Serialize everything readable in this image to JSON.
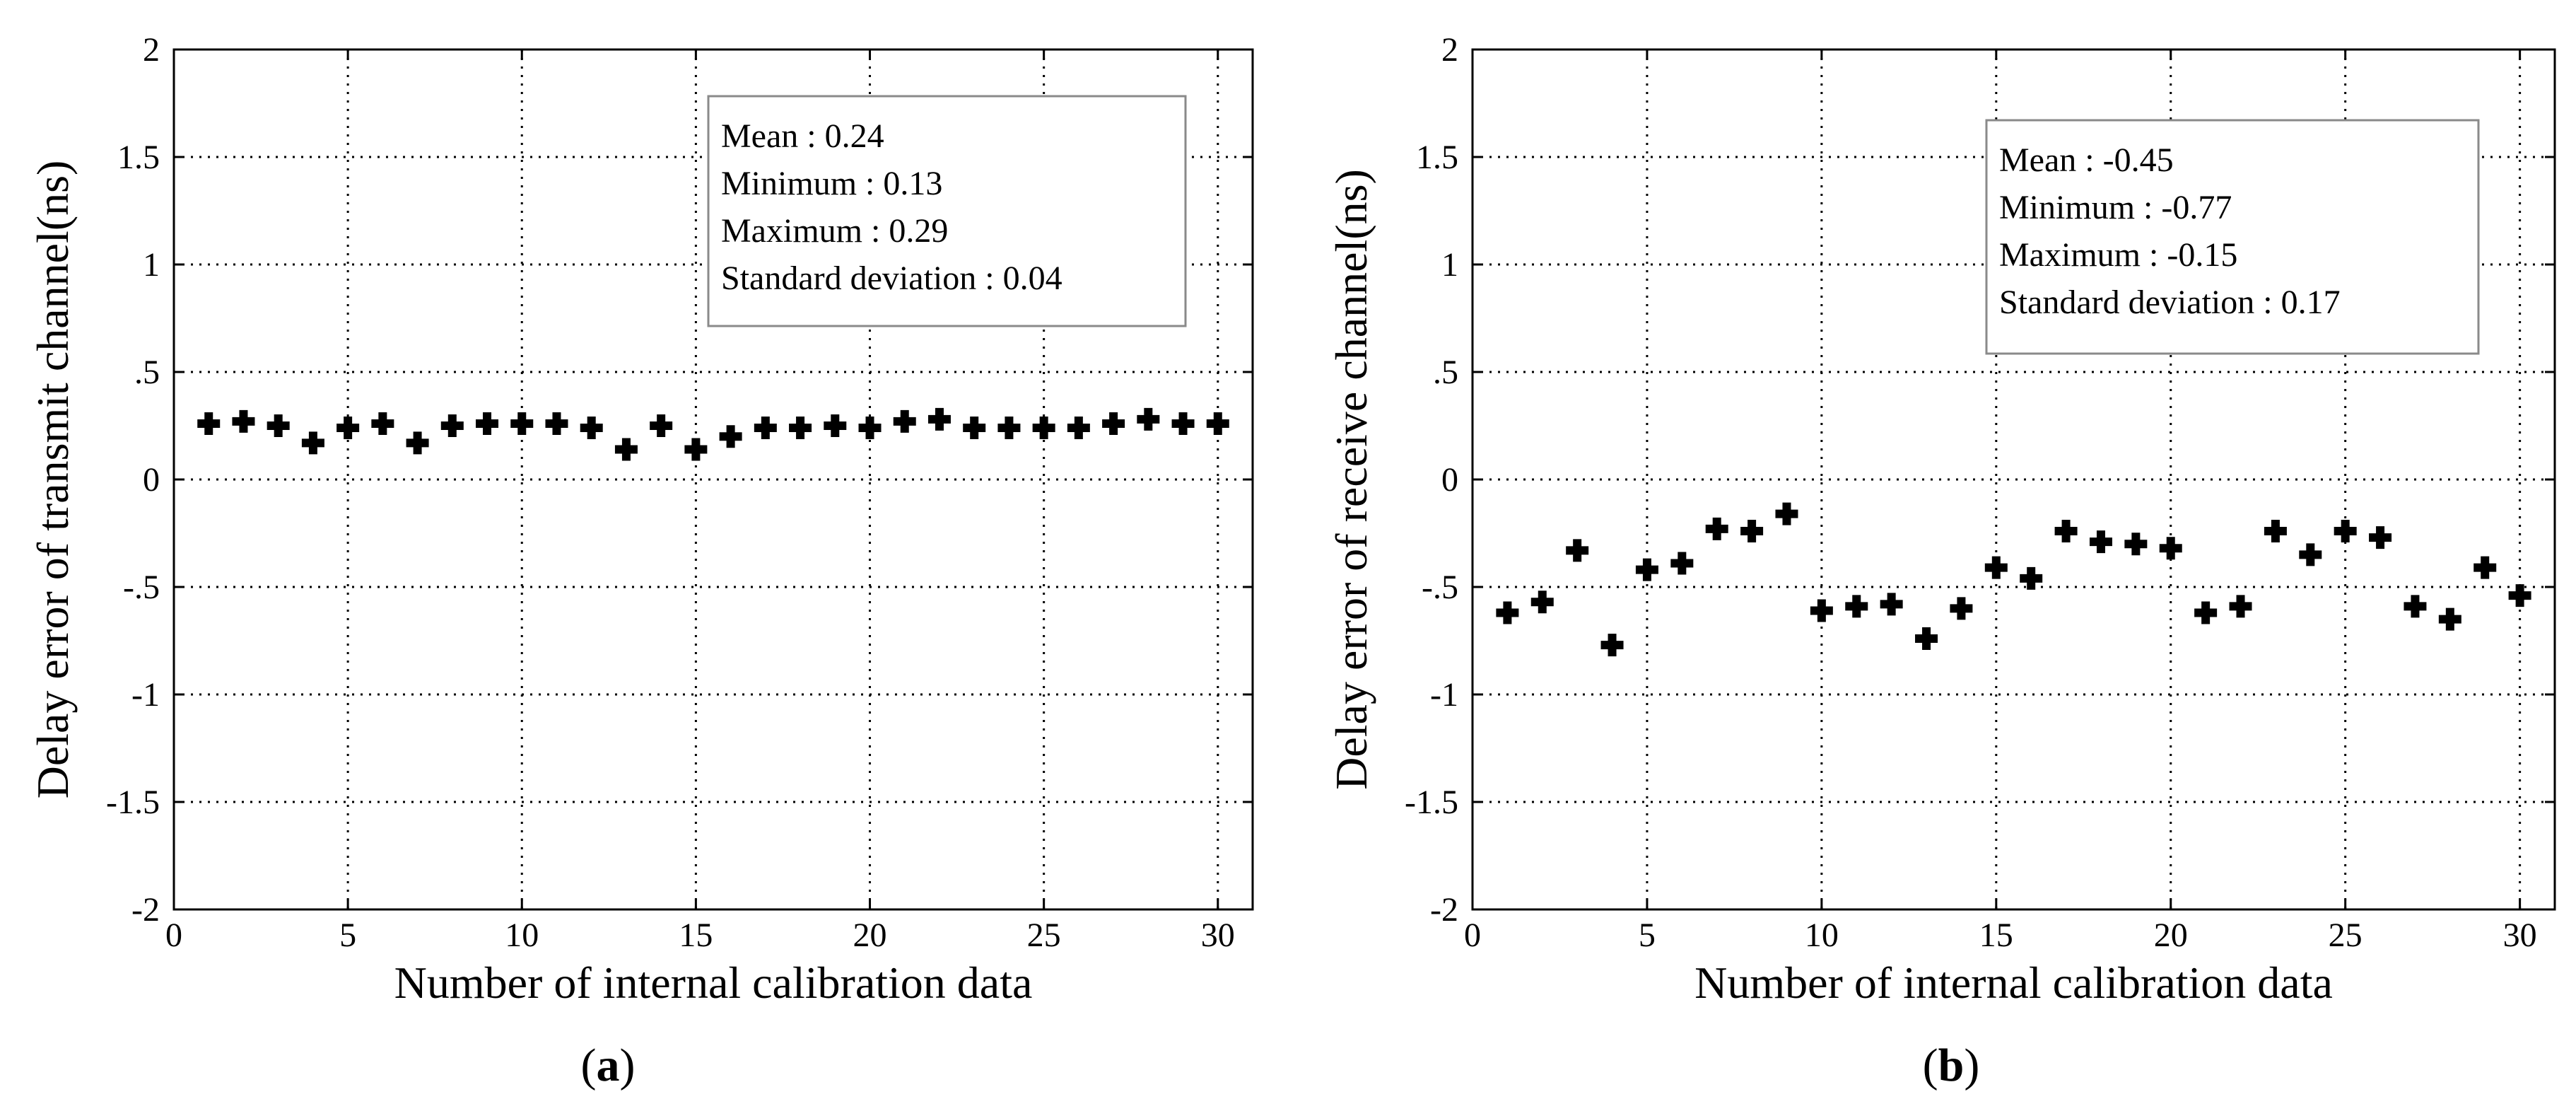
{
  "figure": {
    "panels": [
      {
        "label_open": "(",
        "label_letter": "a",
        "label_close": ")"
      },
      {
        "label_open": "(",
        "label_letter": "b",
        "label_close": ")"
      }
    ]
  },
  "chart_data": [
    {
      "type": "scatter",
      "panel": "a",
      "title": "",
      "xlabel": "Number of internal calibration data",
      "ylabel": "Delay error of transmit channel(ns)",
      "xlim": [
        0,
        31
      ],
      "ylim": [
        -2,
        2
      ],
      "xticks": [
        0,
        5,
        10,
        15,
        20,
        25,
        30
      ],
      "yticks": [
        -2,
        -1.5,
        -1,
        -0.5,
        0,
        0.5,
        1,
        1.5,
        2
      ],
      "grid": true,
      "legend_position": "top-right",
      "stats": [
        "Mean : 0.24",
        "Minimum : 0.13",
        "Maximum : 0.29",
        "Standard deviation : 0.04"
      ],
      "x": [
        1,
        2,
        3,
        4,
        5,
        6,
        7,
        8,
        9,
        10,
        11,
        12,
        13,
        14,
        15,
        16,
        17,
        18,
        19,
        20,
        21,
        22,
        23,
        24,
        25,
        26,
        27,
        28,
        29,
        30
      ],
      "y": [
        0.26,
        0.27,
        0.25,
        0.17,
        0.24,
        0.26,
        0.17,
        0.25,
        0.26,
        0.26,
        0.26,
        0.24,
        0.14,
        0.25,
        0.14,
        0.2,
        0.24,
        0.24,
        0.25,
        0.24,
        0.27,
        0.28,
        0.24,
        0.24,
        0.24,
        0.24,
        0.26,
        0.28,
        0.26,
        0.26
      ]
    },
    {
      "type": "scatter",
      "panel": "b",
      "title": "",
      "xlabel": "Number of internal calibration data",
      "ylabel": "Delay error of receive channel(ns)",
      "xlim": [
        0,
        31
      ],
      "ylim": [
        -2,
        2
      ],
      "xticks": [
        0,
        5,
        10,
        15,
        20,
        25,
        30
      ],
      "yticks": [
        -2,
        -1.5,
        -1,
        -0.5,
        0,
        0.5,
        1,
        1.5,
        2
      ],
      "grid": true,
      "legend_position": "top-right",
      "stats": [
        "Mean : -0.45",
        "Minimum : -0.77",
        "Maximum : -0.15",
        "Standard deviation : 0.17"
      ],
      "x": [
        1,
        2,
        3,
        4,
        5,
        6,
        7,
        8,
        9,
        10,
        11,
        12,
        13,
        14,
        15,
        16,
        17,
        18,
        19,
        20,
        21,
        22,
        23,
        24,
        25,
        26,
        27,
        28,
        29,
        30
      ],
      "y": [
        -0.62,
        -0.57,
        -0.33,
        -0.77,
        -0.42,
        -0.39,
        -0.23,
        -0.24,
        -0.16,
        -0.61,
        -0.59,
        -0.58,
        -0.74,
        -0.6,
        -0.41,
        -0.46,
        -0.24,
        -0.29,
        -0.3,
        -0.32,
        -0.62,
        -0.59,
        -0.24,
        -0.35,
        -0.24,
        -0.27,
        -0.59,
        -0.65,
        -0.41,
        -0.54
      ]
    }
  ]
}
